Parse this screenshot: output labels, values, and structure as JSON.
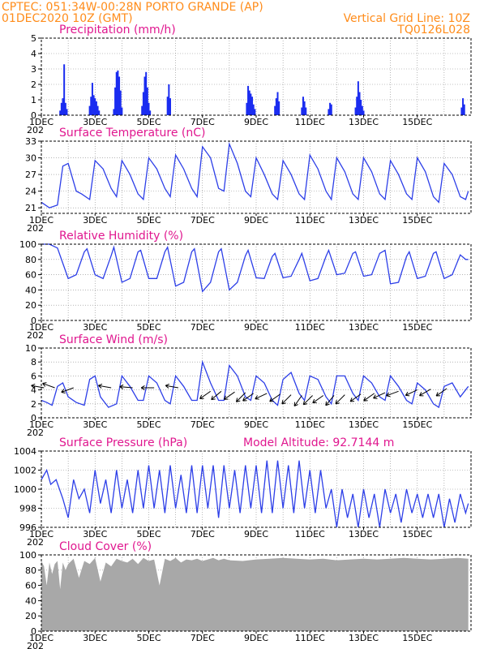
{
  "header": {
    "line1": "CPTEC:   051:34W-00:28N  PORTO GRANDE (AP)",
    "line2": "01DEC2020 10Z (GMT)",
    "right1": "Vertical Grid Line: 10Z",
    "right2": "TQ0126L028"
  },
  "colors": {
    "header": "#ff8c1a",
    "title": "#e0178f",
    "series": "#2d3fe8",
    "cloud": "#a8a8a8"
  },
  "xaxis": {
    "tick_labels": [
      "1DEC",
      "3DEC",
      "5DEC",
      "7DEC",
      "9DEC",
      "11DEC",
      "13DEC",
      "15DEC"
    ],
    "year_fragment": "202"
  },
  "chart_data": [
    {
      "type": "bar",
      "title": "Precipitation (mm/h)",
      "ylim": [
        0,
        5
      ],
      "yticks": [
        "0",
        "1",
        "2",
        "3",
        "4",
        "5"
      ],
      "bars": [
        [
          0.7,
          0.3
        ],
        [
          0.75,
          0.8
        ],
        [
          0.8,
          1.1
        ],
        [
          0.85,
          3.3
        ],
        [
          0.9,
          0.8
        ],
        [
          0.95,
          0.4
        ],
        [
          1.8,
          0.6
        ],
        [
          1.85,
          1.2
        ],
        [
          1.9,
          2.1
        ],
        [
          1.95,
          1.3
        ],
        [
          2.0,
          1.1
        ],
        [
          2.05,
          0.9
        ],
        [
          2.1,
          0.6
        ],
        [
          2.15,
          0.3
        ],
        [
          2.7,
          0.4
        ],
        [
          2.75,
          1.8
        ],
        [
          2.8,
          2.8
        ],
        [
          2.85,
          2.9
        ],
        [
          2.9,
          2.5
        ],
        [
          2.95,
          1.6
        ],
        [
          3.0,
          0.5
        ],
        [
          3.75,
          0.6
        ],
        [
          3.8,
          1.5
        ],
        [
          3.85,
          2.5
        ],
        [
          3.9,
          2.8
        ],
        [
          3.95,
          1.8
        ],
        [
          4.0,
          0.8
        ],
        [
          4.05,
          0.3
        ],
        [
          4.7,
          1.2
        ],
        [
          4.75,
          2.0
        ],
        [
          4.8,
          1.1
        ],
        [
          7.65,
          0.8
        ],
        [
          7.7,
          1.9
        ],
        [
          7.75,
          1.6
        ],
        [
          7.8,
          1.4
        ],
        [
          7.85,
          1.2
        ],
        [
          7.9,
          0.7
        ],
        [
          7.95,
          0.4
        ],
        [
          8.7,
          0.6
        ],
        [
          8.75,
          1.1
        ],
        [
          8.8,
          1.5
        ],
        [
          8.85,
          0.9
        ],
        [
          9.7,
          0.5
        ],
        [
          9.75,
          1.2
        ],
        [
          9.8,
          0.9
        ],
        [
          9.85,
          0.5
        ],
        [
          10.7,
          0.4
        ],
        [
          10.75,
          0.8
        ],
        [
          10.8,
          0.7
        ],
        [
          11.7,
          0.5
        ],
        [
          11.75,
          1.2
        ],
        [
          11.8,
          2.2
        ],
        [
          11.85,
          1.5
        ],
        [
          11.9,
          1.0
        ],
        [
          11.95,
          0.6
        ],
        [
          12.0,
          0.3
        ],
        [
          15.65,
          0.5
        ],
        [
          15.7,
          1.1
        ],
        [
          15.75,
          0.7
        ]
      ]
    },
    {
      "type": "line",
      "title": "Surface Temperature (nC)",
      "ylim": [
        20,
        33
      ],
      "yticks": [
        "21",
        "24",
        "27",
        "30",
        "33"
      ],
      "x": [
        0,
        0.3,
        0.6,
        0.8,
        1.0,
        1.3,
        1.5,
        1.8,
        2.0,
        2.3,
        2.6,
        2.8,
        3.0,
        3.3,
        3.6,
        3.8,
        4.0,
        4.3,
        4.6,
        4.8,
        5.0,
        5.3,
        5.6,
        5.8,
        6.0,
        6.3,
        6.6,
        6.8,
        7.0,
        7.3,
        7.6,
        7.8,
        8.0,
        8.3,
        8.6,
        8.8,
        9.0,
        9.3,
        9.6,
        9.8,
        10.0,
        10.3,
        10.6,
        10.8,
        11.0,
        11.3,
        11.6,
        11.8,
        12.0,
        12.3,
        12.6,
        12.8,
        13.0,
        13.3,
        13.6,
        13.8,
        14.0,
        14.3,
        14.6,
        14.8,
        15.0,
        15.3,
        15.6,
        15.8,
        15.9
      ],
      "y": [
        22,
        21,
        21.5,
        28.5,
        29,
        24,
        23.5,
        22.5,
        29.5,
        28,
        24.5,
        23,
        29.5,
        27,
        23.5,
        22.5,
        30,
        28,
        24.5,
        23,
        30.5,
        28,
        24.5,
        23,
        32,
        30,
        24.5,
        24,
        32.5,
        29,
        24,
        23,
        30,
        27,
        23.5,
        22.5,
        29.5,
        27,
        23.5,
        22.5,
        30.5,
        28,
        24,
        22.5,
        30,
        27.5,
        23.5,
        22.5,
        30,
        27.5,
        23.5,
        22.5,
        29.5,
        27,
        23.5,
        22.5,
        30,
        27.5,
        23,
        22,
        29,
        27,
        23,
        22.5,
        24
      ]
    },
    {
      "type": "line",
      "title": "Relative Humidity (%)",
      "ylim": [
        0,
        100
      ],
      "yticks": [
        "0",
        "20",
        "40",
        "60",
        "80",
        "100"
      ],
      "x": [
        0,
        0.3,
        0.6,
        0.7,
        1.0,
        1.3,
        1.6,
        1.7,
        2.0,
        2.3,
        2.6,
        2.7,
        3.0,
        3.3,
        3.6,
        3.7,
        4.0,
        4.3,
        4.6,
        4.7,
        5.0,
        5.3,
        5.6,
        5.7,
        6.0,
        6.3,
        6.6,
        6.7,
        7.0,
        7.3,
        7.6,
        7.7,
        8.0,
        8.3,
        8.6,
        8.7,
        9.0,
        9.3,
        9.6,
        9.7,
        10.0,
        10.3,
        10.6,
        10.7,
        11.0,
        11.3,
        11.6,
        11.7,
        12.0,
        12.3,
        12.6,
        12.8,
        13.0,
        13.3,
        13.6,
        13.7,
        14.0,
        14.3,
        14.6,
        14.7,
        15.0,
        15.3,
        15.6,
        15.8,
        15.9
      ],
      "y": [
        100,
        100,
        95,
        85,
        55,
        60,
        90,
        94,
        60,
        55,
        85,
        96,
        50,
        55,
        90,
        92,
        55,
        55,
        90,
        96,
        45,
        50,
        90,
        94,
        38,
        50,
        90,
        94,
        40,
        50,
        85,
        92,
        56,
        55,
        84,
        88,
        56,
        58,
        80,
        88,
        52,
        55,
        84,
        92,
        60,
        62,
        88,
        90,
        58,
        60,
        88,
        92,
        48,
        50,
        84,
        90,
        55,
        58,
        88,
        90,
        55,
        60,
        86,
        80,
        80
      ]
    },
    {
      "type": "line",
      "title": "Surface Wind (m/s)",
      "ylim": [
        0,
        10
      ],
      "yticks": [
        "0",
        "2",
        "4",
        "6",
        "8",
        "10"
      ],
      "x": [
        0,
        0.2,
        0.4,
        0.6,
        0.8,
        1.0,
        1.3,
        1.6,
        1.8,
        2.0,
        2.2,
        2.5,
        2.8,
        3.0,
        3.3,
        3.6,
        3.8,
        4.0,
        4.3,
        4.6,
        4.8,
        5.0,
        5.3,
        5.6,
        5.8,
        6.0,
        6.3,
        6.6,
        6.8,
        7.0,
        7.3,
        7.6,
        7.8,
        8.0,
        8.3,
        8.6,
        8.8,
        9.0,
        9.3,
        9.6,
        9.8,
        10.0,
        10.3,
        10.6,
        10.8,
        11.0,
        11.3,
        11.6,
        11.8,
        12.0,
        12.3,
        12.6,
        12.8,
        13.0,
        13.3,
        13.6,
        13.8,
        14.0,
        14.3,
        14.6,
        14.8,
        15.0,
        15.3,
        15.6,
        15.9
      ],
      "y": [
        2.5,
        2.2,
        1.8,
        4.5,
        5,
        3,
        2.2,
        1.8,
        5.5,
        6,
        3,
        1.5,
        2,
        6,
        4.5,
        2.5,
        2.5,
        6,
        5,
        2.5,
        2,
        6,
        4.5,
        2.5,
        2.5,
        8,
        5,
        2.5,
        2.5,
        7.5,
        6,
        3,
        2.5,
        6,
        5,
        2.5,
        1.8,
        5.5,
        6.5,
        3.5,
        2.5,
        6,
        5.5,
        3,
        2,
        6,
        6,
        3.5,
        2.5,
        6,
        5,
        3,
        2.5,
        6,
        4.5,
        2.5,
        2,
        5,
        4,
        2,
        1.5,
        4.5,
        5,
        3,
        4.5
      ],
      "arrows_x": [
        0.1,
        0.5,
        1.2,
        2.6,
        3.4,
        4.2,
        5.1,
        6.3,
        6.7,
        7.2,
        7.6,
        7.9,
        8.4,
        8.9,
        9.3,
        9.7,
        10.1,
        10.5,
        10.9,
        11.3,
        11.9,
        12.4,
        12.8,
        13.3,
        14.0,
        14.5,
        15.1
      ],
      "arrows_y": [
        4.3,
        4.3,
        4.3,
        4.3,
        4.3,
        4.3,
        4.3,
        3.8,
        3.8,
        3.7,
        3.6,
        3.5,
        3.5,
        3.4,
        3.3,
        3.2,
        3.2,
        3.2,
        3.2,
        3.3,
        3.4,
        3.5,
        3.6,
        3.8,
        4.0,
        4.1,
        4.2
      ],
      "arrows_angle": [
        170,
        160,
        200,
        170,
        175,
        180,
        170,
        215,
        220,
        215,
        225,
        215,
        205,
        215,
        225,
        235,
        225,
        215,
        230,
        225,
        215,
        215,
        205,
        200,
        205,
        210,
        215
      ]
    },
    {
      "type": "line",
      "title": "Surface Pressure (hPa)",
      "model_altitude": "Model Altitude: 92.7144 m",
      "ylim": [
        996,
        1004
      ],
      "yticks": [
        "996",
        "998",
        "1000",
        "1002",
        "1004"
      ],
      "x": [
        0,
        0.2,
        0.35,
        0.55,
        0.8,
        1.0,
        1.2,
        1.4,
        1.6,
        1.8,
        2.0,
        2.2,
        2.4,
        2.6,
        2.8,
        3.0,
        3.2,
        3.4,
        3.6,
        3.8,
        4.0,
        4.2,
        4.4,
        4.6,
        4.8,
        5.0,
        5.2,
        5.4,
        5.6,
        5.8,
        6.0,
        6.2,
        6.4,
        6.6,
        6.8,
        7.0,
        7.2,
        7.4,
        7.6,
        7.8,
        8.0,
        8.2,
        8.4,
        8.6,
        8.8,
        9.0,
        9.2,
        9.4,
        9.6,
        9.8,
        10.0,
        10.2,
        10.4,
        10.6,
        10.8,
        11.0,
        11.2,
        11.4,
        11.6,
        11.8,
        12.0,
        12.2,
        12.4,
        12.6,
        12.8,
        13.0,
        13.2,
        13.4,
        13.6,
        13.8,
        14.0,
        14.2,
        14.4,
        14.6,
        14.8,
        15.0,
        15.2,
        15.4,
        15.6,
        15.8,
        15.9
      ],
      "y": [
        1001,
        1002,
        1000.5,
        1001,
        999,
        997,
        1001,
        999,
        1000,
        997.5,
        1002,
        998.5,
        1001,
        997.5,
        1002,
        998,
        1001,
        997.5,
        1002,
        998,
        1002.5,
        998,
        1002,
        997.5,
        1002.5,
        998,
        1001.5,
        997.5,
        1002.5,
        997.5,
        1002.5,
        998,
        1002.5,
        997,
        1002.5,
        998,
        1002,
        997.5,
        1002.5,
        998,
        1002.5,
        997.5,
        1003,
        997.5,
        1003,
        998,
        1002.5,
        997.5,
        1003,
        998,
        1002,
        997.5,
        1002,
        998,
        1000,
        996,
        1000,
        997,
        999.5,
        996,
        1000,
        997,
        999.5,
        996,
        1000,
        997.5,
        999.5,
        996.5,
        1000,
        997.5,
        999.5,
        997,
        999.5,
        997,
        999.5,
        996,
        999,
        996.5,
        999.5,
        997.5,
        998.5
      ]
    },
    {
      "type": "area",
      "title": "Cloud Cover (%)",
      "ylim": [
        0,
        100
      ],
      "yticks": [
        "0",
        "20",
        "40",
        "60",
        "80",
        "100"
      ],
      "x": [
        0,
        0.1,
        0.2,
        0.3,
        0.4,
        0.5,
        0.6,
        0.7,
        0.8,
        0.9,
        1.0,
        1.2,
        1.4,
        1.6,
        1.8,
        2.0,
        2.2,
        2.4,
        2.6,
        2.8,
        3.0,
        3.2,
        3.4,
        3.6,
        3.8,
        4.0,
        4.2,
        4.4,
        4.6,
        4.8,
        5.0,
        5.2,
        5.4,
        5.6,
        5.8,
        6.0,
        6.2,
        6.4,
        6.6,
        6.8,
        7.0,
        7.5,
        8.0,
        8.5,
        9.0,
        9.5,
        10.0,
        10.5,
        11.0,
        11.5,
        12.0,
        12.5,
        13.0,
        13.5,
        14.0,
        14.5,
        15.0,
        15.5,
        15.9
      ],
      "y": [
        92,
        85,
        60,
        90,
        75,
        88,
        92,
        55,
        90,
        80,
        88,
        95,
        70,
        92,
        88,
        96,
        65,
        90,
        85,
        95,
        92,
        90,
        95,
        88,
        96,
        92,
        94,
        60,
        95,
        92,
        96,
        90,
        94,
        93,
        95,
        92,
        94,
        96,
        93,
        95,
        93,
        92,
        94,
        95,
        96,
        95,
        94,
        95,
        93,
        94,
        95,
        94,
        95,
        96,
        95,
        94,
        95,
        96,
        95
      ]
    }
  ]
}
